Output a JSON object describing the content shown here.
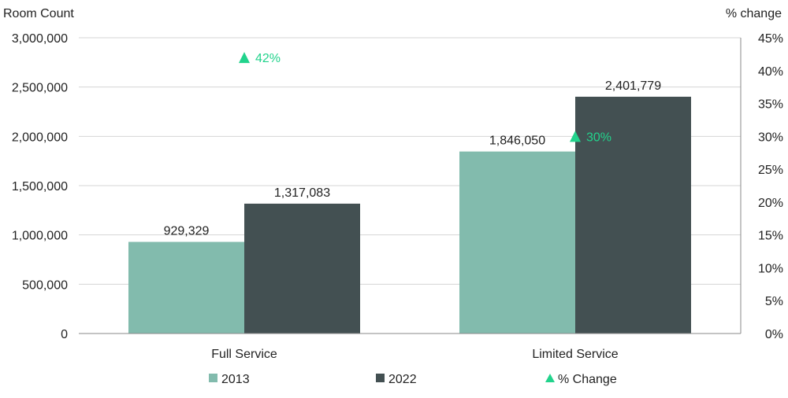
{
  "chart_data": {
    "type": "bar",
    "categories": [
      "Full Service",
      "Limited Service"
    ],
    "series": [
      {
        "name": "2013",
        "values": [
          929329,
          1846050
        ],
        "labels": [
          "929,329",
          "1,846,050"
        ],
        "color": "#82bbad"
      },
      {
        "name": "2022",
        "values": [
          1317083,
          2401779
        ],
        "labels": [
          "1,317,083",
          "2,401,779"
        ],
        "color": "#435052"
      }
    ],
    "pct_change": {
      "name": "% Change",
      "values": [
        42,
        30
      ],
      "labels": [
        "42%",
        "30%"
      ],
      "color": "#22d38c"
    },
    "ylabel_left": "Room Count",
    "ylabel_right": "% change",
    "ylim_left": [
      0,
      3000000
    ],
    "ylim_right": [
      0,
      45
    ],
    "yticks_left": [
      {
        "value": 0,
        "label": "0"
      },
      {
        "value": 500000,
        "label": "500,000"
      },
      {
        "value": 1000000,
        "label": "1,000,000"
      },
      {
        "value": 1500000,
        "label": "1,500,000"
      },
      {
        "value": 2000000,
        "label": "2,000,000"
      },
      {
        "value": 2500000,
        "label": "2,500,000"
      },
      {
        "value": 3000000,
        "label": "3,000,000"
      }
    ],
    "yticks_right": [
      {
        "value": 0,
        "label": "0%"
      },
      {
        "value": 5,
        "label": "5%"
      },
      {
        "value": 10,
        "label": "10%"
      },
      {
        "value": 15,
        "label": "15%"
      },
      {
        "value": 20,
        "label": "20%"
      },
      {
        "value": 25,
        "label": "25%"
      },
      {
        "value": 30,
        "label": "30%"
      },
      {
        "value": 35,
        "label": "35%"
      },
      {
        "value": 40,
        "label": "40%"
      },
      {
        "value": 45,
        "label": "45%"
      }
    ],
    "grid": true,
    "legend_position": "bottom-center",
    "legend": [
      {
        "label": "2013",
        "marker": "square",
        "color": "#82bbad"
      },
      {
        "label": "2022",
        "marker": "square",
        "color": "#435052"
      },
      {
        "label": "% Change",
        "marker": "triangle",
        "color": "#22d38c"
      }
    ]
  }
}
